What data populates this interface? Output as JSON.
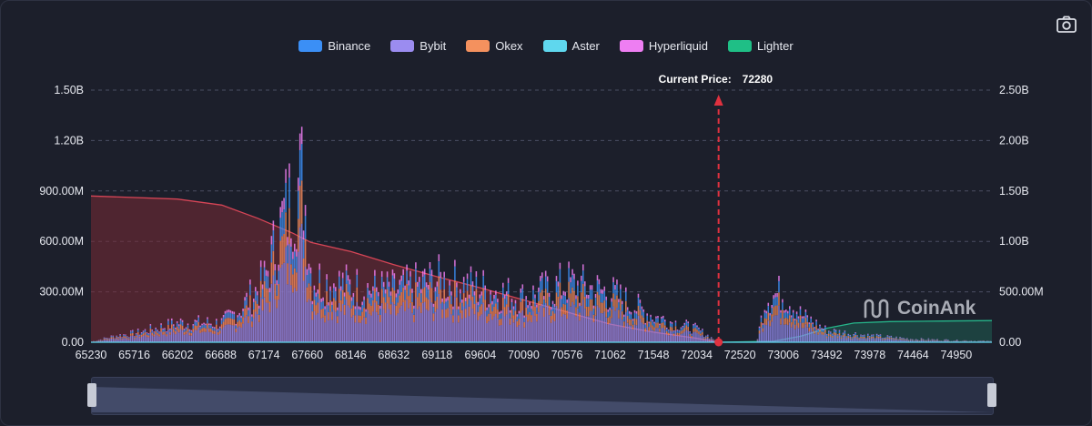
{
  "legend": [
    {
      "name": "Binance",
      "color": "#3b8ff6"
    },
    {
      "name": "Bybit",
      "color": "#9b8cf0"
    },
    {
      "name": "Okex",
      "color": "#f4915e"
    },
    {
      "name": "Aster",
      "color": "#5fd7ee"
    },
    {
      "name": "Hyperliquid",
      "color": "#ee7ef2"
    },
    {
      "name": "Lighter",
      "color": "#1fbf86"
    }
  ],
  "watermark": "CoinAnk",
  "icons": {
    "camera": "camera-icon",
    "logo": "coinank-logo-icon"
  },
  "chart_data": {
    "type": "bar",
    "title": "",
    "current_price": {
      "label": "Current Price:",
      "value": "72280",
      "x": 72280
    },
    "x_ticks": [
      "65230",
      "65716",
      "66202",
      "66688",
      "67174",
      "67660",
      "68146",
      "68632",
      "69118",
      "69604",
      "70090",
      "70576",
      "71062",
      "71548",
      "72034",
      "72520",
      "73006",
      "73492",
      "73978",
      "74464",
      "74950"
    ],
    "x_range": [
      65230,
      75350
    ],
    "y_left": {
      "ticks": [
        "0.00",
        "300.00M",
        "600.00M",
        "900.00M",
        "1.20B",
        "1.50B"
      ],
      "range": [
        0,
        1500000000
      ]
    },
    "y_right": {
      "ticks": [
        "0.00",
        "500.00M",
        "1.00B",
        "1.50B",
        "2.00B",
        "2.50B"
      ],
      "range": [
        0,
        2500000000
      ]
    },
    "long_liquidation_profile": [
      {
        "price": 65230,
        "value": 1450000000
      },
      {
        "price": 66200,
        "value": 1420000000
      },
      {
        "price": 66700,
        "value": 1360000000
      },
      {
        "price": 67100,
        "value": 1230000000
      },
      {
        "price": 67500,
        "value": 1080000000
      },
      {
        "price": 67700,
        "value": 990000000
      },
      {
        "price": 68146,
        "value": 900000000
      },
      {
        "price": 68632,
        "value": 770000000
      },
      {
        "price": 69118,
        "value": 650000000
      },
      {
        "price": 69604,
        "value": 540000000
      },
      {
        "price": 70090,
        "value": 420000000
      },
      {
        "price": 70576,
        "value": 300000000
      },
      {
        "price": 71062,
        "value": 180000000
      },
      {
        "price": 71548,
        "value": 100000000
      },
      {
        "price": 72034,
        "value": 40000000
      },
      {
        "price": 72280,
        "value": 0
      }
    ],
    "short_liquidation_profile": [
      {
        "price": 72280,
        "value": 0
      },
      {
        "price": 72900,
        "value": 10000000
      },
      {
        "price": 73200,
        "value": 60000000
      },
      {
        "price": 73500,
        "value": 140000000
      },
      {
        "price": 73800,
        "value": 190000000
      },
      {
        "price": 74200,
        "value": 205000000
      },
      {
        "price": 74800,
        "value": 210000000
      },
      {
        "price": 75350,
        "value": 215000000
      }
    ],
    "bar_envelope": [
      {
        "price": 65230,
        "value": 5000000
      },
      {
        "price": 65500,
        "value": 50000000
      },
      {
        "price": 65716,
        "value": 70000000
      },
      {
        "price": 66202,
        "value": 150000000
      },
      {
        "price": 66688,
        "value": 150000000
      },
      {
        "price": 66900,
        "value": 260000000
      },
      {
        "price": 67174,
        "value": 480000000
      },
      {
        "price": 67400,
        "value": 1000000000
      },
      {
        "price": 67600,
        "value": 1300000000
      },
      {
        "price": 67700,
        "value": 500000000
      },
      {
        "price": 68146,
        "value": 430000000
      },
      {
        "price": 68632,
        "value": 400000000
      },
      {
        "price": 69118,
        "value": 480000000
      },
      {
        "price": 69604,
        "value": 420000000
      },
      {
        "price": 70090,
        "value": 340000000
      },
      {
        "price": 70576,
        "value": 460000000
      },
      {
        "price": 71062,
        "value": 380000000
      },
      {
        "price": 71548,
        "value": 200000000
      },
      {
        "price": 72034,
        "value": 100000000
      },
      {
        "price": 72280,
        "value": 0
      },
      {
        "price": 72700,
        "value": 0
      },
      {
        "price": 72800,
        "value": 350000000
      },
      {
        "price": 73006,
        "value": 380000000
      },
      {
        "price": 73200,
        "value": 210000000
      },
      {
        "price": 73492,
        "value": 90000000
      },
      {
        "price": 73978,
        "value": 50000000
      },
      {
        "price": 74464,
        "value": 25000000
      },
      {
        "price": 74950,
        "value": 15000000
      },
      {
        "price": 75350,
        "value": 8000000
      }
    ]
  }
}
